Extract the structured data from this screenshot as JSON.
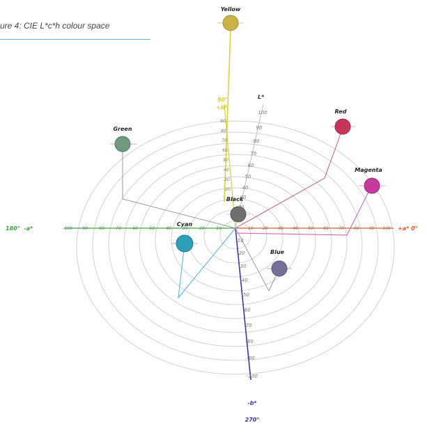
{
  "figure": {
    "caption": "ure 4: CIE L*c*h colour space"
  },
  "axes": {
    "l_label": "L*",
    "left_label": "180°  -a*",
    "right_label": "+a* 0°",
    "bottom_label_b": "-b*",
    "bottom_label_deg": "270°",
    "a_ticks": [
      "-100",
      "-90",
      "-80",
      "-70",
      "-60",
      "-50",
      "-40",
      "-30",
      "-20",
      "-10",
      "10",
      "20",
      "30",
      "40",
      "50",
      "60",
      "70",
      "80",
      "90",
      "100"
    ],
    "l_ticks": [
      "100",
      "90",
      "80",
      "70",
      "60",
      "50",
      "40",
      "30",
      "20",
      "10"
    ],
    "b_ticks": [
      "-10",
      "-20",
      "-30",
      "-40",
      "-50",
      "-60",
      "-70",
      "-80",
      "-90",
      "-100"
    ],
    "yellow_axis_top": "90°",
    "yellow_axis_bottom": "+b*"
  },
  "colours": {
    "yellow": {
      "label": "Yellow",
      "fill": "#c9b24a"
    },
    "green": {
      "label": "Green",
      "fill": "#6f9a7e"
    },
    "red": {
      "label": "Red",
      "fill": "#c8355c"
    },
    "magenta": {
      "label": "Magenta",
      "fill": "#c53a9c"
    },
    "black": {
      "label": "Black",
      "fill": "#6f6f6f"
    },
    "cyan": {
      "label": "Cyan",
      "fill": "#2d9fb8"
    },
    "blue": {
      "label": "Blue",
      "fill": "#76709a"
    }
  },
  "axis_colors": {
    "neg_a": "#3aa63a",
    "pos_a": "#e05a2a",
    "neg_b": "#3a36a0",
    "pos_b": "#d7cf3a"
  }
}
